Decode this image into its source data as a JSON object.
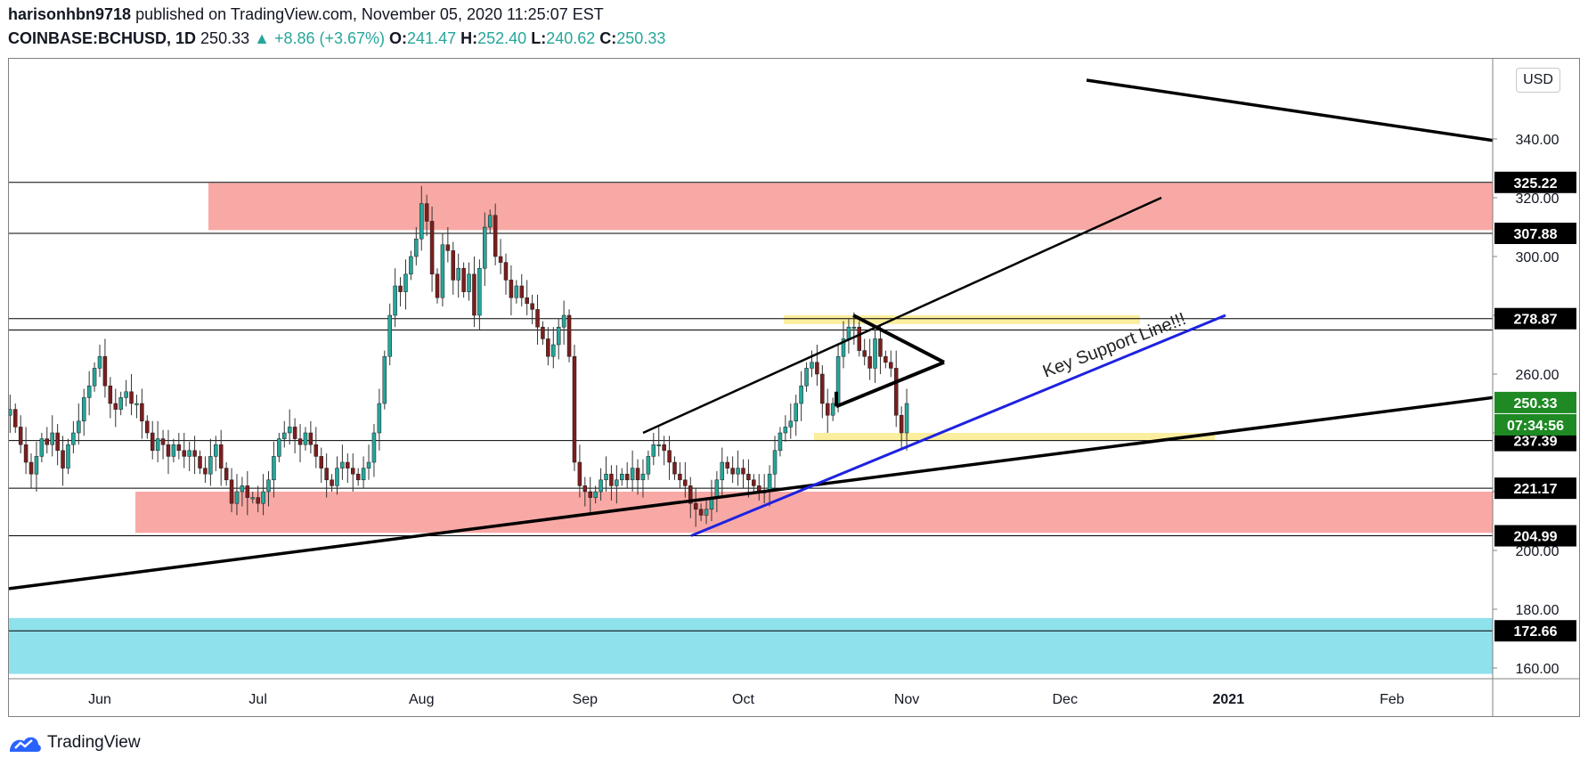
{
  "header": {
    "author": "harisonhbn9718",
    "published_text": "published on TradingView.com, November 05, 2020 11:25:07 EST",
    "symbol": "COINBASE:BCHUSD, 1D",
    "last": "250.33",
    "change": "▲ +8.86 (+3.67%)",
    "open_label": "O:",
    "open": "241.47",
    "high_label": "H:",
    "high": "252.40",
    "low_label": "L:",
    "low": "240.62",
    "close_label": "C:",
    "close": "250.33"
  },
  "currency_button": "USD",
  "footer": {
    "brand": "TradingView"
  },
  "colors": {
    "up": "#26a69a",
    "down": "#7b1e1e",
    "resistance_zone": "#f9a9a5",
    "support_zone": "#f9a9a5",
    "yellow_zone": "#fbee9e",
    "cyan_zone": "#8fe1ec",
    "key_line": "#1e22e0",
    "price_tag": "#1f8a24"
  },
  "chart_data": {
    "type": "candlestick",
    "y_axis": {
      "ticks": [
        160,
        180,
        200,
        220,
        240,
        260,
        280,
        300,
        320,
        340
      ],
      "ylim": [
        155,
        362
      ]
    },
    "x_axis": {
      "ticks": [
        "Jun",
        "Jul",
        "Aug",
        "Sep",
        "Oct",
        "Nov",
        "Dec",
        "2021",
        "Feb"
      ]
    },
    "price_levels": [
      "340.00",
      "325.22",
      "320.00",
      "307.88",
      "300.00",
      "278.87",
      "275.00",
      "260.00",
      "250.33",
      "237.39",
      "221.17",
      "204.99",
      "200.00",
      "180.00",
      "172.66",
      "160.00"
    ],
    "countdown": "07:34:56",
    "annotation": "Key Support Line!!!",
    "horizontal_levels": [
      325.22,
      307.88,
      278.87,
      275.0,
      237.39,
      221.17,
      204.99,
      172.66
    ],
    "zones": [
      {
        "name": "resistance",
        "from": 309,
        "to": 325
      },
      {
        "name": "support",
        "from": 206,
        "to": 220
      },
      {
        "name": "yellow-upper",
        "from": 277,
        "to": 280
      },
      {
        "name": "yellow-lower",
        "from": 237.5,
        "to": 240
      },
      {
        "name": "cyan",
        "from": 158,
        "to": 177
      }
    ],
    "closes": [
      244,
      240,
      238,
      246,
      248,
      242,
      236,
      230,
      226,
      232,
      238,
      236,
      240,
      234,
      228,
      236,
      240,
      244,
      252,
      256,
      262,
      266,
      256,
      250,
      248,
      252,
      254,
      250,
      250,
      244,
      240,
      234,
      238,
      236,
      232,
      236,
      234,
      232,
      234,
      232,
      228,
      226,
      232,
      236,
      228,
      224,
      216,
      220,
      222,
      218,
      218,
      216,
      220,
      224,
      232,
      238,
      240,
      242,
      238,
      236,
      240,
      236,
      232,
      228,
      224,
      222,
      228,
      230,
      228,
      226,
      224,
      228,
      230,
      240,
      250,
      266,
      280,
      290,
      288,
      294,
      300,
      306,
      318,
      312,
      294,
      286,
      304,
      302,
      292,
      296,
      288,
      294,
      280,
      296,
      310,
      314,
      300,
      298,
      292,
      286,
      290,
      286,
      284,
      282,
      276,
      272,
      266,
      270,
      276,
      280,
      266,
      230,
      222,
      220,
      218,
      220,
      224,
      226,
      222,
      224,
      226,
      224,
      228,
      224,
      226,
      232,
      236,
      236,
      234,
      230,
      226,
      224,
      222,
      216,
      214,
      212,
      214,
      218,
      224,
      230,
      228,
      226,
      228,
      226,
      224,
      222,
      220,
      220,
      226,
      234,
      240,
      242,
      244,
      250,
      256,
      262,
      264,
      260,
      250,
      246,
      250,
      266,
      272,
      276,
      276,
      268,
      266,
      262,
      272,
      266,
      264,
      262,
      246,
      240,
      250
    ],
    "series": [
      {
        "name": "BCHUSD",
        "from": "2020-05-11",
        "to": "2020-11-05",
        "last": 250.33
      }
    ]
  }
}
